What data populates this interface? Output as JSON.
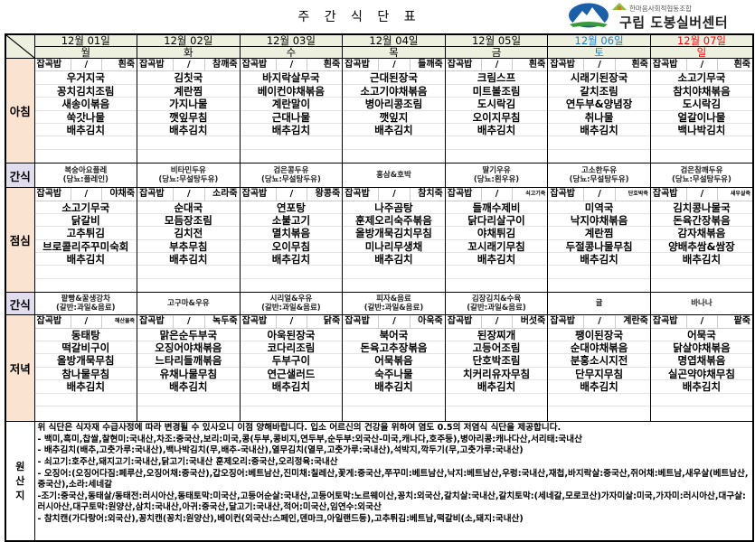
{
  "title": "주 간 식 단 표",
  "logo": {
    "org": "한마음사회적협동조합",
    "name": "구립 도봉실버센터"
  },
  "colors": {
    "saturday": "#1f7fd0",
    "sunday": "#ff0000",
    "meal_label_bg": "#fbe3d1",
    "snack_label_bg": "#e1ddee",
    "header_bg": "#eef0df"
  },
  "days": [
    {
      "date": "12월 01일",
      "weekday": "월"
    },
    {
      "date": "12월 02일",
      "weekday": "화"
    },
    {
      "date": "12월 03일",
      "weekday": "수"
    },
    {
      "date": "12월 04일",
      "weekday": "목"
    },
    {
      "date": "12월 05일",
      "weekday": "금"
    },
    {
      "date": "12월 06일",
      "weekday": "토"
    },
    {
      "date": "12월 07일",
      "weekday": "일"
    }
  ],
  "labels": {
    "breakfast": "아침",
    "snack": "간식",
    "lunch": "점심",
    "dinner": "저녁",
    "origin": "원산지",
    "rice": "잡곡밥",
    "slash": "/"
  },
  "breakfast": [
    {
      "porridge": "흰죽",
      "items": [
        "우거지국",
        "꽁치김치조림",
        "새송이볶음",
        "쑥갓나물",
        "배추김치"
      ]
    },
    {
      "porridge": "참깨죽",
      "items": [
        "김칫국",
        "계란찜",
        "가지나물",
        "깻잎무침",
        "배추김치"
      ]
    },
    {
      "porridge": "흰죽",
      "items": [
        "바지락살무국",
        "베이컨야채볶음",
        "계란말이",
        "근대나물",
        "배추김치"
      ]
    },
    {
      "porridge": "들깨죽",
      "items": [
        "근대된장국",
        "소고기야채볶음",
        "병아리콩조림",
        "깻잎지",
        "배추김치"
      ]
    },
    {
      "porridge": "흰죽",
      "items": [
        "크림스프",
        "미트볼조림",
        "도시락김",
        "오이지무침",
        "배추김치"
      ]
    },
    {
      "porridge": "흰죽",
      "items": [
        "시래기된장국",
        "갈치조림",
        "연두부&양념장",
        "취나물",
        "배추김치"
      ]
    },
    {
      "porridge": "흰죽",
      "items": [
        "소고기무국",
        "참치야채볶음",
        "도시락김",
        "얼갈이나물",
        "백나박김치"
      ]
    }
  ],
  "snack_am": [
    {
      "name": "복숭아요플레",
      "diabetic": "(당뇨:플레인)"
    },
    {
      "name": "비타민두유",
      "diabetic": "(당뇨:무설탕두유)"
    },
    {
      "name": "검은콩두유",
      "diabetic": "(당뇨:무설탕두유)"
    },
    {
      "name": "홍삼&호박",
      "diabetic": ""
    },
    {
      "name": "딸기우유",
      "diabetic": "(당뇨:흰우유)"
    },
    {
      "name": "고소한두유",
      "diabetic": "(당뇨:무설탕두유)"
    },
    {
      "name": "검은참깨두유",
      "diabetic": "(당뇨:무설탕두유)"
    }
  ],
  "lunch": [
    {
      "porridge": "야채죽",
      "items": [
        "소고기무국",
        "닭갈비",
        "고추튀김",
        "브로콜리주꾸미숙회",
        "배추김치"
      ]
    },
    {
      "porridge": "소라죽",
      "items": [
        "순대국",
        "모듬장조림",
        "김치전",
        "부추무침",
        "배추김치"
      ]
    },
    {
      "porridge": "왕콩죽",
      "items": [
        "연포탕",
        "소불고기",
        "멸치볶음",
        "오이무침",
        "배추김치"
      ]
    },
    {
      "porridge": "참치죽",
      "items": [
        "나주곰탕",
        "훈제오리숙주볶음",
        "올방개묵김치무침",
        "미나리무생채",
        "배추김치"
      ]
    },
    {
      "porridge": "쇠고기죽",
      "items": [
        "들깨수제비",
        "닭다리살구이",
        "야채튀김",
        "꼬시래기무침",
        "배추김치"
      ]
    },
    {
      "porridge": "단호박죽",
      "items": [
        "미역국",
        "낙지야채볶음",
        "계란찜",
        "두절콩나물무침",
        "배추김치"
      ]
    },
    {
      "porridge": "새우살죽",
      "items": [
        "김치콩나물국",
        "돈육간장볶음",
        "감자채볶음",
        "양배추쌈&쌈장",
        "배추김치"
      ]
    }
  ],
  "snack_pm": [
    {
      "name": "팥빵&꿀생강차",
      "diabetic": "(갈반:과일&음료)"
    },
    {
      "name": "고구마&우유",
      "diabetic": ""
    },
    {
      "name": "시리얼&우유",
      "diabetic": "(갈반:과일&음료)"
    },
    {
      "name": "피자&음료",
      "diabetic": "(갈반:과일&음료)"
    },
    {
      "name": "김장김치&수육",
      "diabetic": "(갈반:과일&음료)"
    },
    {
      "name": "귤",
      "diabetic": ""
    },
    {
      "name": "바나나",
      "diabetic": ""
    }
  ],
  "dinner": [
    {
      "porridge": "해산물죽",
      "items": [
        "동태탕",
        "떡갈비구이",
        "올방개묵무침",
        "참나물무침",
        "배추김치"
      ]
    },
    {
      "porridge": "녹두죽",
      "items": [
        "맑은순두부국",
        "오징어야채볶음",
        "느타리들깨볶음",
        "유채나물무침",
        "배추김치"
      ]
    },
    {
      "porridge": "닭죽",
      "items": [
        "아욱된장국",
        "코다리조림",
        "두부구이",
        "연근샐러드",
        "배추김치"
      ]
    },
    {
      "porridge": "아욱죽",
      "items": [
        "북어국",
        "돈육고추장볶음",
        "어묵볶음",
        "숙주나물",
        "배추김치"
      ]
    },
    {
      "porridge": "버섯죽",
      "items": [
        "된장찌개",
        "고등어조림",
        "단호박조림",
        "치커리유자무침",
        "배추김치"
      ]
    },
    {
      "porridge": "계란죽",
      "items": [
        "팽이된장국",
        "순대야채볶음",
        "분홍소시지전",
        "단무지무침",
        "배추김치"
      ]
    },
    {
      "porridge": "팥죽",
      "items": [
        "어묵국",
        "닭살야채볶음",
        "명엽채볶음",
        "실곤약야채무침",
        "배추김치"
      ]
    }
  ],
  "footer": [
    "위 식단은 식자재 수급사정에 따라 변경될 수 있사오니 이점 양해바랍니다. 입소 어르신의 건강을 위하여 염도 0.5의 저염식 식단을 제공합니다.",
    "- 백미,흑미,찹쌀,찰현미:국내산,차조:중국산,보리:미국,콩(두부,콩비지,연두부,순두부:외국산-미국,캐나다,호주등),병아리콩:캐나다산,서리태:국내산",
    "- 배추김치(배추,고춧가루:국내산),백나박김치(무,배추-국내산),열무김치(열무,고춧가루:국내산),석박지,깍두기(무,고춧가루:국내산)",
    "- 쇠고기:호주산,돼지고기:국내산,닭고기:국내산 훈제오리:중국산,오리정육:국내산",
    "- 오징어:(오징어다짐:페루산,오징어채:중국산),갑오징어:베트남산,진미채:칠레산,꽃게:중국산,쭈꾸미:베트남산,낙지:베트남산,우렁:국내산,재첩,바지락살:중국산,쥐어채:베트남,새우살(베트남산,중국산),소라:세네갈",
    "-조기:중국산,동태살/동태전:러시아산,동태토막:미국산,고등어순살:국내산,고등어토막:노르웨이산,꽁치:외국산,갈치살:국내산,갈치토막:(세네갈,모로코산)가자미살:미국,가자미:러시아산,대구살:러시아산,대구토막:원양산,삼치:국내산,아귀:중국산,달고기:국내산,적어:미국산,임연수:외국산",
    "- 참치캔(가다랑어:외국산),꽁치캔(꽁치:원양산),베이컨(외국산:스페인,덴마크,아일랜드등),고추튀김:베트남,떡갈비(소,돼지:국내산)"
  ]
}
